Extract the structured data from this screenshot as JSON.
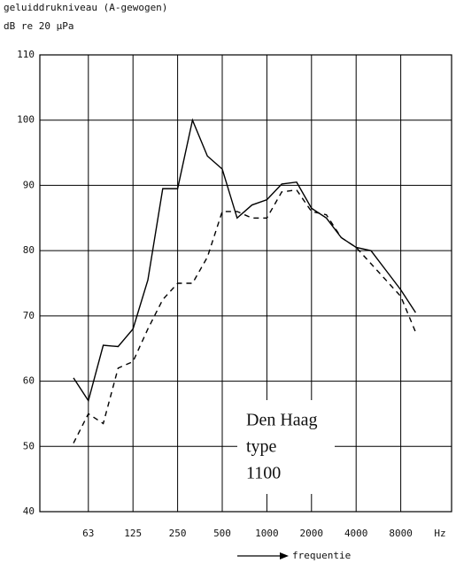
{
  "chart_data": {
    "type": "line",
    "title": "geluiddrukniveau (A-gewogen)",
    "subtitle": "dB re 20 μPa",
    "x_label": "frequentie",
    "x_unit": "Hz",
    "categories": [
      null,
      "63",
      null,
      null,
      "125",
      null,
      null,
      "250",
      null,
      null,
      "500",
      null,
      null,
      "1000",
      null,
      null,
      "2000",
      null,
      null,
      "4000",
      null,
      null,
      "8000",
      null
    ],
    "series": [
      {
        "name": null,
        "color": "#000000",
        "style": "solid",
        "values": [
          60.5,
          57,
          65.5,
          65.3,
          68,
          75.5,
          89.5,
          89.5,
          100,
          94.5,
          92.5,
          85,
          87,
          87.8,
          90.2,
          90.5,
          86.5,
          85,
          82,
          80.5,
          80,
          77,
          74,
          70.5
        ]
      },
      {
        "name": null,
        "color": "#000000",
        "style": "dashed",
        "values": [
          50.5,
          55,
          53.5,
          62,
          63,
          68,
          72.5,
          75,
          75,
          79,
          86,
          86,
          85,
          85,
          89,
          89.3,
          86,
          85.5,
          82,
          80.5,
          78,
          75.5,
          73,
          67.5
        ]
      }
    ],
    "ylim": [
      40,
      110
    ],
    "yticks": [
      40,
      50,
      60,
      70,
      80,
      90,
      100,
      110
    ],
    "grid": true,
    "annotation": [
      "Den Haag",
      "type",
      "1100"
    ]
  }
}
